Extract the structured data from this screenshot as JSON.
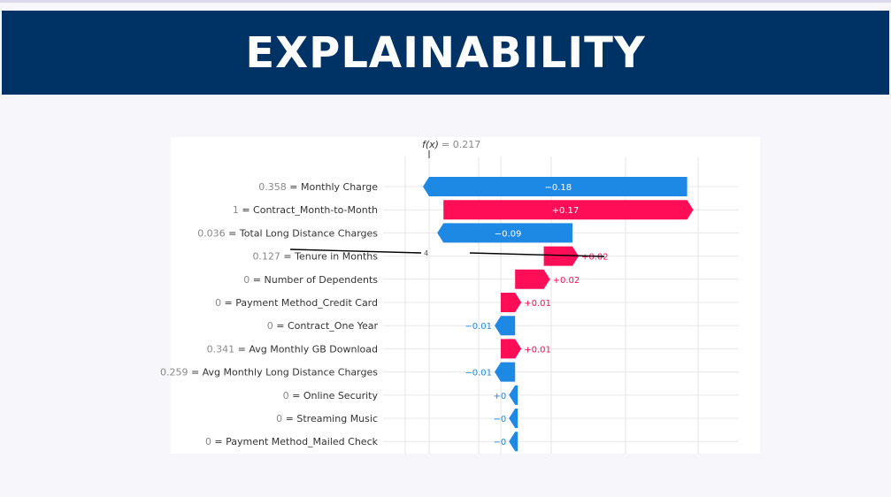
{
  "header": {
    "title": "EXPLAINABILITY"
  },
  "colors": {
    "banner": "#003365",
    "positive": "#ff0d57",
    "negative": "#1e88e5"
  },
  "chart_data": {
    "type": "waterfall",
    "fx_label": "f(x)",
    "fx_value": "= 0.217",
    "fx": 0.217,
    "axis_tick_label": "4",
    "features": [
      {
        "value": "0.358",
        "name": "Monthly Charge",
        "contribution": -0.18,
        "label": "−0.18"
      },
      {
        "value": "1",
        "name": "Contract_Month-to-Month",
        "contribution": 0.17,
        "label": "+0.17"
      },
      {
        "value": "0.036",
        "name": "Total Long Distance Charges",
        "contribution": -0.09,
        "label": "−0.09"
      },
      {
        "value": "0.127",
        "name": "Tenure in Months",
        "contribution": 0.02,
        "label": "+0.02"
      },
      {
        "value": "0",
        "name": "Number of Dependents",
        "contribution": 0.02,
        "label": "+0.02"
      },
      {
        "value": "0",
        "name": "Payment Method_Credit Card",
        "contribution": 0.01,
        "label": "+0.01"
      },
      {
        "value": "0",
        "name": "Contract_One Year",
        "contribution": -0.01,
        "label": "−0.01"
      },
      {
        "value": "0.341",
        "name": "Avg Monthly GB Download",
        "contribution": 0.01,
        "label": "+0.01"
      },
      {
        "value": "0.259",
        "name": "Avg Monthly Long Distance Charges",
        "contribution": -0.01,
        "label": "−0.01"
      },
      {
        "value": "0",
        "name": "Online Security",
        "contribution": 0.0,
        "label": "+0"
      },
      {
        "value": "0",
        "name": "Streaming Music",
        "contribution": -0.0,
        "label": "−0"
      },
      {
        "value": "0",
        "name": "Payment Method_Mailed Check",
        "contribution": -0.0,
        "label": "−0"
      }
    ]
  }
}
